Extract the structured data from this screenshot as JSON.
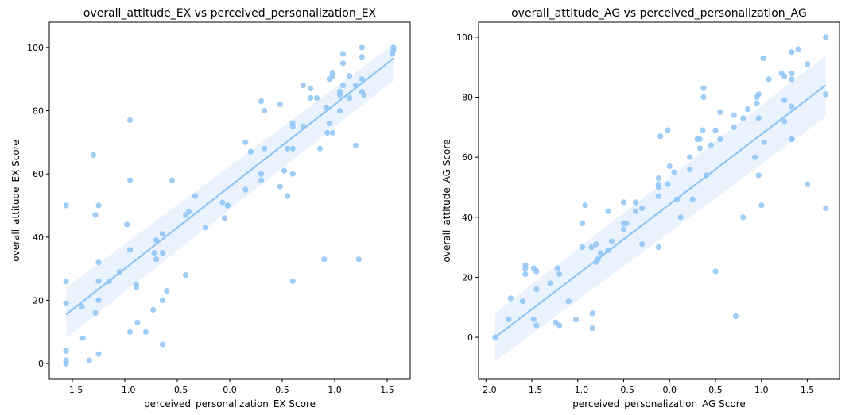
{
  "chart_data": [
    {
      "type": "scatter",
      "title": "overall_attitude_EX vs perceived_personalization_EX",
      "xlabel": "perceived_personalization_EX Score",
      "ylabel": "overall_attitude_EX Score",
      "xlim": [
        -1.72,
        1.72
      ],
      "ylim": [
        -5,
        108
      ],
      "xticks": [
        -1.5,
        -1.0,
        -0.5,
        0.0,
        0.5,
        1.0,
        1.5
      ],
      "xtick_labels": [
        "−1.5",
        "−1.0",
        "−0.5",
        "0.0",
        "0.5",
        "1.0",
        "1.5"
      ],
      "yticks": [
        0,
        20,
        40,
        60,
        80,
        100
      ],
      "ytick_labels": [
        "0",
        "20",
        "40",
        "60",
        "80",
        "100"
      ],
      "point_color": "#8ec4f5",
      "band_color": "#d8eafc",
      "grid": false,
      "legend": "none",
      "regression": {
        "x": [
          -1.56,
          1.56
        ],
        "y": [
          15.5,
          96.5
        ],
        "ci_upper": [
          24,
          101
        ],
        "ci_lower": [
          8,
          89.5
        ]
      },
      "points": [
        [
          -1.56,
          50
        ],
        [
          -1.56,
          26
        ],
        [
          -1.56,
          19
        ],
        [
          -1.56,
          4
        ],
        [
          -1.56,
          1
        ],
        [
          -1.56,
          0
        ],
        [
          -1.41,
          18
        ],
        [
          -1.4,
          8
        ],
        [
          -1.34,
          1
        ],
        [
          -1.3,
          66
        ],
        [
          -1.28,
          47
        ],
        [
          -1.28,
          16
        ],
        [
          -1.25,
          50
        ],
        [
          -1.25,
          32
        ],
        [
          -1.25,
          26
        ],
        [
          -1.25,
          20
        ],
        [
          -1.25,
          3
        ],
        [
          -1.15,
          26
        ],
        [
          -1.05,
          29
        ],
        [
          -0.98,
          44
        ],
        [
          -0.95,
          77
        ],
        [
          -0.95,
          58
        ],
        [
          -0.95,
          36
        ],
        [
          -0.95,
          10
        ],
        [
          -0.89,
          25
        ],
        [
          -0.89,
          24
        ],
        [
          -0.88,
          13
        ],
        [
          -0.8,
          10
        ],
        [
          -0.73,
          17
        ],
        [
          -0.72,
          35
        ],
        [
          -0.7,
          39
        ],
        [
          -0.7,
          33
        ],
        [
          -0.64,
          41
        ],
        [
          -0.64,
          35
        ],
        [
          -0.64,
          20
        ],
        [
          -0.64,
          6
        ],
        [
          -0.6,
          23
        ],
        [
          -0.55,
          58
        ],
        [
          -0.42,
          47
        ],
        [
          -0.42,
          28
        ],
        [
          -0.39,
          48
        ],
        [
          -0.33,
          53
        ],
        [
          -0.23,
          43
        ],
        [
          -0.07,
          51
        ],
        [
          -0.05,
          46
        ],
        [
          -0.02,
          50
        ],
        [
          -0.02,
          50
        ],
        [
          0.15,
          55
        ],
        [
          0.15,
          70
        ],
        [
          0.2,
          67
        ],
        [
          0.3,
          83
        ],
        [
          0.3,
          60
        ],
        [
          0.3,
          58
        ],
        [
          0.33,
          80
        ],
        [
          0.33,
          68
        ],
        [
          0.48,
          82
        ],
        [
          0.48,
          56
        ],
        [
          0.52,
          61
        ],
        [
          0.55,
          53
        ],
        [
          0.55,
          68
        ],
        [
          0.6,
          76
        ],
        [
          0.6,
          75
        ],
        [
          0.6,
          68
        ],
        [
          0.6,
          60
        ],
        [
          0.6,
          26
        ],
        [
          0.7,
          88
        ],
        [
          0.7,
          75
        ],
        [
          0.77,
          87
        ],
        [
          0.77,
          84
        ],
        [
          0.83,
          84
        ],
        [
          0.86,
          68
        ],
        [
          0.9,
          33
        ],
        [
          0.92,
          81
        ],
        [
          0.93,
          73
        ],
        [
          0.95,
          90
        ],
        [
          0.95,
          76
        ],
        [
          0.98,
          92
        ],
        [
          0.98,
          91
        ],
        [
          0.98,
          73
        ],
        [
          1.05,
          86
        ],
        [
          1.05,
          85
        ],
        [
          1.05,
          80
        ],
        [
          1.08,
          98
        ],
        [
          1.08,
          95
        ],
        [
          1.08,
          88
        ],
        [
          1.14,
          91
        ],
        [
          1.14,
          84
        ],
        [
          1.2,
          88
        ],
        [
          1.2,
          69
        ],
        [
          1.23,
          33
        ],
        [
          1.26,
          100
        ],
        [
          1.26,
          97
        ],
        [
          1.26,
          90
        ],
        [
          1.26,
          86
        ],
        [
          1.28,
          85
        ],
        [
          1.55,
          98
        ],
        [
          1.56,
          100
        ],
        [
          1.56,
          99
        ]
      ]
    },
    {
      "type": "scatter",
      "title": "overall_attitude_AG vs perceived_personalization_AG",
      "xlabel": "perceived_personalization_AG Score",
      "ylabel": "overall_attitude_AG Score",
      "xlim": [
        -2.08,
        1.85
      ],
      "ylim": [
        -14,
        105
      ],
      "xticks": [
        -2.0,
        -1.5,
        -1.0,
        -0.5,
        0.0,
        0.5,
        1.0,
        1.5
      ],
      "xtick_labels": [
        "−2.0",
        "−1.5",
        "−1.0",
        "−0.5",
        "0.0",
        "0.5",
        "1.0",
        "1.5"
      ],
      "yticks": [
        0,
        20,
        40,
        60,
        80,
        100
      ],
      "ytick_labels": [
        "0",
        "20",
        "40",
        "60",
        "80",
        "100"
      ],
      "point_color": "#8ec4f5",
      "band_color": "#d8eafc",
      "grid": false,
      "legend": "none",
      "regression": {
        "x": [
          -1.9,
          1.7
        ],
        "y": [
          0,
          84
        ],
        "ci_upper": [
          8,
          94
        ],
        "ci_lower": [
          -8,
          73.5
        ]
      },
      "points": [
        [
          -1.9,
          0
        ],
        [
          -1.75,
          6
        ],
        [
          -1.73,
          13
        ],
        [
          -1.6,
          12
        ],
        [
          -1.57,
          24
        ],
        [
          -1.57,
          23
        ],
        [
          -1.57,
          21
        ],
        [
          -1.48,
          23
        ],
        [
          -1.48,
          6
        ],
        [
          -1.45,
          22
        ],
        [
          -1.45,
          16
        ],
        [
          -1.45,
          4
        ],
        [
          -1.3,
          18
        ],
        [
          -1.24,
          5
        ],
        [
          -1.22,
          23
        ],
        [
          -1.2,
          21
        ],
        [
          -1.2,
          4
        ],
        [
          -1.1,
          12
        ],
        [
          -1.02,
          6
        ],
        [
          -0.95,
          38
        ],
        [
          -0.95,
          30
        ],
        [
          -0.92,
          44
        ],
        [
          -0.85,
          30
        ],
        [
          -0.84,
          8
        ],
        [
          -0.84,
          3
        ],
        [
          -0.8,
          31
        ],
        [
          -0.8,
          25
        ],
        [
          -0.78,
          26
        ],
        [
          -0.75,
          28
        ],
        [
          -0.67,
          42
        ],
        [
          -0.67,
          29
        ],
        [
          -0.63,
          32
        ],
        [
          -0.5,
          45
        ],
        [
          -0.5,
          38
        ],
        [
          -0.5,
          36
        ],
        [
          -0.47,
          38
        ],
        [
          -0.37,
          45
        ],
        [
          -0.37,
          42
        ],
        [
          -0.3,
          31
        ],
        [
          -0.3,
          43
        ],
        [
          -0.12,
          53
        ],
        [
          -0.12,
          51
        ],
        [
          -0.12,
          50
        ],
        [
          -0.12,
          47
        ],
        [
          -0.12,
          30
        ],
        [
          -0.1,
          67
        ],
        [
          -0.02,
          69
        ],
        [
          -0.02,
          51
        ],
        [
          0.0,
          57
        ],
        [
          0.05,
          55
        ],
        [
          0.08,
          46
        ],
        [
          0.12,
          40
        ],
        [
          0.22,
          56
        ],
        [
          0.22,
          60
        ],
        [
          0.25,
          46
        ],
        [
          0.3,
          66
        ],
        [
          0.33,
          66
        ],
        [
          0.33,
          63
        ],
        [
          0.36,
          69
        ],
        [
          0.37,
          83
        ],
        [
          0.37,
          80
        ],
        [
          0.4,
          54
        ],
        [
          0.45,
          64
        ],
        [
          0.5,
          22
        ],
        [
          0.5,
          69
        ],
        [
          0.55,
          75
        ],
        [
          0.55,
          66
        ],
        [
          0.7,
          74
        ],
        [
          0.7,
          70
        ],
        [
          0.72,
          7
        ],
        [
          0.8,
          40
        ],
        [
          0.8,
          73
        ],
        [
          0.85,
          76
        ],
        [
          0.93,
          60
        ],
        [
          0.95,
          80
        ],
        [
          0.95,
          78
        ],
        [
          0.97,
          81
        ],
        [
          0.97,
          73
        ],
        [
          0.97,
          54
        ],
        [
          1.0,
          44
        ],
        [
          1.02,
          93
        ],
        [
          1.03,
          65
        ],
        [
          1.08,
          86
        ],
        [
          1.22,
          88
        ],
        [
          1.25,
          87
        ],
        [
          1.25,
          79
        ],
        [
          1.25,
          72
        ],
        [
          1.33,
          95
        ],
        [
          1.33,
          88
        ],
        [
          1.33,
          86
        ],
        [
          1.33,
          77
        ],
        [
          1.33,
          66
        ],
        [
          1.33,
          66
        ],
        [
          1.4,
          96
        ],
        [
          1.5,
          91
        ],
        [
          1.5,
          51
        ],
        [
          1.7,
          100
        ],
        [
          1.7,
          81
        ],
        [
          1.7,
          43
        ]
      ]
    }
  ]
}
